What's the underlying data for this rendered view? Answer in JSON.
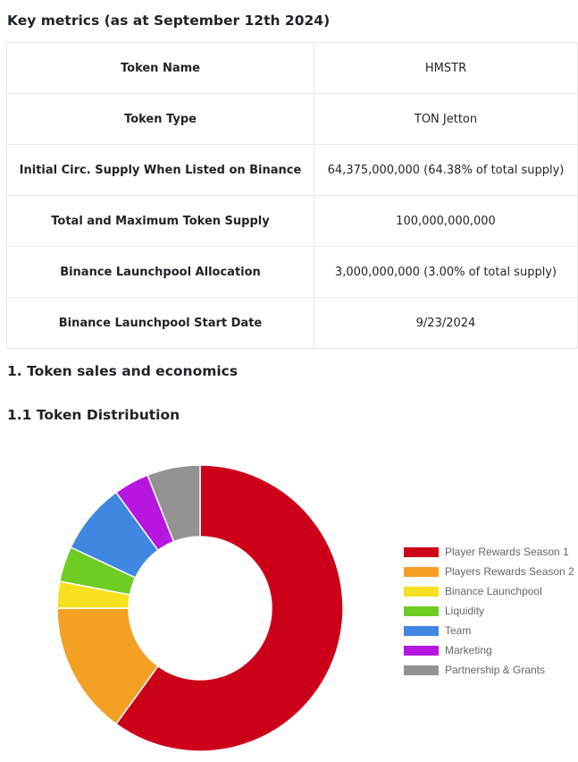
{
  "metrics_title": "Key metrics (as at September 12th 2024)",
  "metrics": [
    {
      "label": "Token Name",
      "value": "HMSTR"
    },
    {
      "label": "Token Type",
      "value": "TON Jetton"
    },
    {
      "label": "Initial Circ. Supply When Listed on Binance",
      "value": "64,375,000,000 (64.38% of total supply)"
    },
    {
      "label": "Total and Maximum Token Supply",
      "value": "100,000,000,000"
    },
    {
      "label": "Binance Launchpool Allocation",
      "value": "3,000,000,000 (3.00% of total supply)"
    },
    {
      "label": "Binance Launchpool Start Date",
      "value": "9/23/2024"
    }
  ],
  "section_title": "1. Token sales and economics",
  "subsection_title": "1.1 Token Distribution",
  "chart_data": {
    "type": "pie",
    "donut": true,
    "legend_position": "right",
    "categories": [
      "Player Rewards Season 1",
      "Players Rewards Season 2",
      "Binance Launchpool",
      "Liquidity",
      "Team",
      "Marketing",
      "Partnership & Grants"
    ],
    "values": [
      60,
      15,
      3,
      4,
      8,
      4,
      6
    ],
    "colors": [
      "#cc0019",
      "#f4a024",
      "#f7e01d",
      "#6fcc22",
      "#3f87e0",
      "#b716e0",
      "#929292"
    ]
  }
}
